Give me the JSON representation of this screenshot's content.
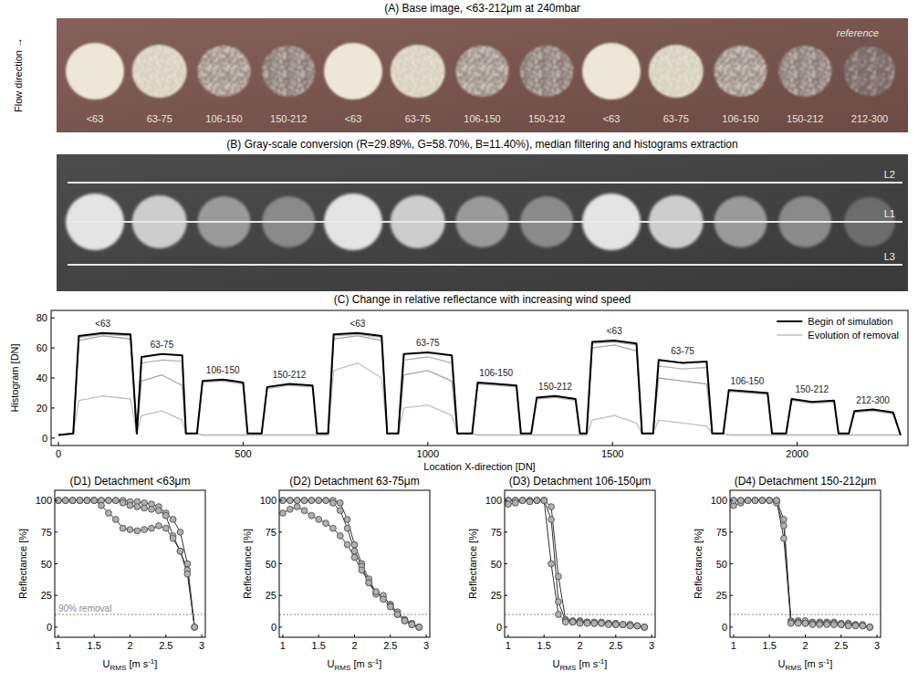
{
  "figure": {
    "panel_a": {
      "title": "(A) Base image, <63-212μm at 240mbar",
      "flow_label": "Flow direction →",
      "reference": "reference",
      "spots": [
        "<63",
        "63-75",
        "106-150",
        "150-212",
        "<63",
        "63-75",
        "106-150",
        "150-212",
        "<63",
        "63-75",
        "106-150",
        "150-212",
        "212-300"
      ]
    },
    "panel_b": {
      "title": "(B) Gray-scale conversion (R=29.89%, G=58.70%, B=11.40%), median filtering and histograms extraction",
      "lines": [
        "L2",
        "L1",
        "L3"
      ]
    }
  },
  "chart_data": [
    {
      "type": "line",
      "title": "(C) Change in relative reflectance with increasing wind speed",
      "xlabel": "Location X-direction [DN]",
      "ylabel": "Histogram [DN]",
      "x": [
        0,
        40,
        55,
        120,
        195,
        212,
        225,
        280,
        335,
        345,
        375,
        390,
        445,
        500,
        512,
        550,
        565,
        625,
        688,
        700,
        730,
        745,
        810,
        875,
        890,
        920,
        935,
        1000,
        1065,
        1080,
        1120,
        1135,
        1185,
        1240,
        1252,
        1280,
        1295,
        1345,
        1400,
        1412,
        1430,
        1445,
        1505,
        1565,
        1580,
        1610,
        1625,
        1690,
        1755,
        1770,
        1800,
        1815,
        1865,
        1920,
        1932,
        1970,
        1985,
        2040,
        2100,
        2112,
        2140,
        2155,
        2205,
        2260,
        2280
      ],
      "series": [
        {
          "name": "Evolution of removal",
          "color": "#b4b4b4",
          "values": [
            2,
            3,
            67,
            69,
            68,
            3,
            50,
            52,
            51,
            3,
            3,
            37,
            38,
            36,
            3,
            3,
            33,
            35,
            34,
            3,
            3,
            68,
            69,
            67,
            3,
            3,
            52,
            54,
            50,
            3,
            3,
            36,
            35,
            34,
            3,
            3,
            26,
            27,
            25,
            3,
            3,
            63,
            64,
            62,
            3,
            3,
            48,
            46,
            47,
            3,
            3,
            31,
            30,
            29,
            3,
            3,
            25,
            23,
            24,
            3,
            3,
            17,
            18,
            16,
            2
          ]
        },
        {
          "color": "#a6a6a6",
          "values": [
            2,
            3,
            65,
            68,
            66,
            3,
            38,
            42,
            35,
            3,
            3,
            2,
            2,
            2,
            2,
            2,
            2,
            2,
            2,
            2,
            2,
            66,
            68,
            65,
            3,
            3,
            42,
            45,
            38,
            3,
            3,
            2,
            2,
            2,
            2,
            2,
            2,
            2,
            2,
            2,
            2,
            60,
            62,
            58,
            3,
            3,
            40,
            38,
            36,
            3,
            3,
            2,
            2,
            2,
            2,
            2,
            2,
            2,
            2,
            2,
            2,
            2,
            2,
            2,
            2
          ]
        },
        {
          "color": "#c0c0c0",
          "values": [
            2,
            3,
            25,
            28,
            26,
            3,
            15,
            18,
            12,
            3,
            3,
            2,
            2,
            2,
            2,
            2,
            2,
            2,
            2,
            2,
            2,
            45,
            50,
            40,
            3,
            3,
            20,
            22,
            15,
            3,
            3,
            2,
            2,
            2,
            2,
            2,
            2,
            2,
            2,
            2,
            2,
            12,
            15,
            10,
            3,
            3,
            12,
            10,
            8,
            3,
            3,
            2,
            2,
            2,
            2,
            2,
            2,
            2,
            2,
            2,
            2,
            2,
            2,
            2,
            2
          ]
        },
        {
          "name": "Begin of simulation",
          "color": "#000000",
          "values": [
            2,
            3,
            68,
            70,
            69,
            3,
            54,
            56,
            55,
            3,
            3,
            38,
            39,
            37,
            3,
            3,
            34,
            36,
            35,
            3,
            3,
            69,
            70,
            68,
            3,
            3,
            56,
            57,
            55,
            3,
            3,
            37,
            36,
            35,
            3,
            3,
            27,
            28,
            26,
            3,
            3,
            64,
            65,
            63,
            3,
            3,
            52,
            50,
            51,
            3,
            3,
            32,
            31,
            30,
            3,
            3,
            26,
            24,
            25,
            3,
            3,
            18,
            19,
            17,
            2
          ]
        }
      ],
      "xlim": [
        -20,
        2300
      ],
      "ylim": [
        -5,
        85
      ],
      "xticks": [
        0,
        500,
        1000,
        1500,
        2000
      ],
      "yticks": [
        0,
        20,
        40,
        60,
        80
      ],
      "legend": "top-right",
      "annotations": [
        {
          "text": "<63",
          "x": 120,
          "y": 74
        },
        {
          "text": "63-75",
          "x": 280,
          "y": 60
        },
        {
          "text": "106-150",
          "x": 445,
          "y": 43
        },
        {
          "text": "150-212",
          "x": 625,
          "y": 40
        },
        {
          "text": "<63",
          "x": 810,
          "y": 74
        },
        {
          "text": "63-75",
          "x": 1000,
          "y": 61
        },
        {
          "text": "106-150",
          "x": 1185,
          "y": 41
        },
        {
          "text": "150-212",
          "x": 1345,
          "y": 32
        },
        {
          "text": "<63",
          "x": 1505,
          "y": 69
        },
        {
          "text": "63-75",
          "x": 1690,
          "y": 56
        },
        {
          "text": "106-150",
          "x": 1865,
          "y": 36
        },
        {
          "text": "150-212",
          "x": 2040,
          "y": 30
        },
        {
          "text": "212-300",
          "x": 2205,
          "y": 23
        }
      ]
    },
    {
      "type": "line",
      "title": "(D1) Detachment <63μm",
      "xlabel": [
        "U",
        "RMS",
        " [m s",
        "-1",
        "]"
      ],
      "ylabel": "Reflectance [%]",
      "x": [
        1,
        1.1,
        1.2,
        1.3,
        1.4,
        1.5,
        1.6,
        1.7,
        1.8,
        1.9,
        2,
        2.1,
        2.2,
        2.3,
        2.4,
        2.5,
        2.6,
        2.7,
        2.8,
        2.9
      ],
      "series": [
        {
          "values": [
            100,
            100,
            100,
            100,
            100,
            100,
            100,
            100,
            100,
            100,
            99,
            99,
            98,
            97,
            95,
            90,
            85,
            75,
            50,
            0
          ]
        },
        {
          "values": [
            100,
            100,
            100,
            100,
            100,
            100,
            100,
            100,
            100,
            98,
            96,
            95,
            94,
            93,
            92,
            88,
            72,
            60,
            45,
            0
          ]
        },
        {
          "values": [
            100,
            100,
            100,
            100,
            100,
            100,
            96,
            90,
            85,
            78,
            77,
            76,
            77,
            78,
            80,
            78,
            70,
            60,
            42,
            0
          ]
        }
      ],
      "color": "#b0b0b0",
      "marker": "circle",
      "xlim": [
        0.95,
        3.05
      ],
      "ylim": [
        -8,
        108
      ],
      "xticks": [
        1,
        1.5,
        2,
        2.5,
        3
      ],
      "yticks": [
        0,
        25,
        50,
        75,
        100
      ],
      "threshold": 10,
      "threshold_label": "90% removal"
    },
    {
      "type": "line",
      "title": "(D2) Detachment 63-75μm",
      "xlabel": [
        "U",
        "RMS",
        " [m s",
        "-1",
        "]"
      ],
      "ylabel": "Reflectance [%]",
      "x": [
        1,
        1.1,
        1.2,
        1.3,
        1.4,
        1.5,
        1.6,
        1.7,
        1.8,
        1.9,
        2,
        2.1,
        2.2,
        2.3,
        2.4,
        2.5,
        2.6,
        2.7,
        2.8,
        2.9
      ],
      "series": [
        {
          "values": [
            100,
            100,
            100,
            100,
            100,
            100,
            100,
            100,
            98,
            85,
            65,
            50,
            38,
            27,
            24,
            18,
            12,
            6,
            3,
            0
          ]
        },
        {
          "values": [
            100,
            100,
            100,
            100,
            100,
            100,
            100,
            98,
            92,
            78,
            60,
            48,
            35,
            26,
            25,
            17,
            10,
            5,
            2,
            0
          ]
        },
        {
          "values": [
            90,
            93,
            95,
            92,
            88,
            85,
            82,
            78,
            72,
            65,
            55,
            45,
            35,
            28,
            22,
            16,
            10,
            5,
            2,
            0
          ]
        }
      ],
      "color": "#b0b0b0",
      "marker": "circle",
      "xlim": [
        0.95,
        3.05
      ],
      "ylim": [
        -8,
        108
      ],
      "xticks": [
        1,
        1.5,
        2,
        2.5,
        3
      ],
      "yticks": [
        0,
        25,
        50,
        75,
        100
      ],
      "threshold": 10
    },
    {
      "type": "line",
      "title": "(D3) Detachment 106-150μm",
      "xlabel": [
        "U",
        "RMS",
        " [m s",
        "-1",
        "]"
      ],
      "ylabel": "Reflectance [%]",
      "x": [
        1,
        1.1,
        1.2,
        1.3,
        1.4,
        1.5,
        1.6,
        1.7,
        1.8,
        1.9,
        2,
        2.1,
        2.2,
        2.3,
        2.4,
        2.5,
        2.6,
        2.7,
        2.8,
        2.9
      ],
      "series": [
        {
          "values": [
            100,
            100,
            100,
            100,
            100,
            100,
            95,
            40,
            6,
            5,
            5,
            4,
            4,
            4,
            3,
            3,
            2,
            2,
            1,
            0
          ]
        },
        {
          "values": [
            100,
            100,
            100,
            100,
            100,
            100,
            85,
            20,
            5,
            4,
            4,
            4,
            3,
            3,
            3,
            2,
            2,
            2,
            1,
            0
          ]
        },
        {
          "values": [
            97,
            98,
            100,
            99,
            100,
            100,
            50,
            10,
            4,
            4,
            3,
            3,
            3,
            3,
            2,
            2,
            2,
            1,
            1,
            0
          ]
        }
      ],
      "color": "#b0b0b0",
      "marker": "circle",
      "xlim": [
        0.95,
        3.05
      ],
      "ylim": [
        -8,
        108
      ],
      "xticks": [
        1,
        1.5,
        2,
        2.5,
        3
      ],
      "yticks": [
        0,
        25,
        50,
        75,
        100
      ],
      "threshold": 10
    },
    {
      "type": "line",
      "title": "(D4) Detachment 150-212μm",
      "xlabel": [
        "U",
        "RMS",
        " [m s",
        "-1",
        "]"
      ],
      "ylabel": "Reflectance [%]",
      "x": [
        1,
        1.1,
        1.2,
        1.3,
        1.4,
        1.5,
        1.6,
        1.7,
        1.8,
        1.9,
        2,
        2.1,
        2.2,
        2.3,
        2.4,
        2.5,
        2.6,
        2.7,
        2.8,
        2.9
      ],
      "series": [
        {
          "values": [
            100,
            100,
            100,
            100,
            100,
            100,
            100,
            85,
            5,
            5,
            5,
            4,
            4,
            4,
            4,
            3,
            3,
            2,
            2,
            0
          ]
        },
        {
          "values": [
            96,
            98,
            100,
            100,
            100,
            100,
            98,
            80,
            4,
            4,
            3,
            3,
            3,
            3,
            3,
            2,
            2,
            2,
            1,
            0
          ]
        },
        {
          "values": [
            100,
            100,
            100,
            100,
            100,
            100,
            100,
            70,
            3,
            3,
            3,
            2,
            2,
            2,
            2,
            2,
            1,
            1,
            1,
            0
          ]
        }
      ],
      "color": "#b0b0b0",
      "marker": "circle",
      "xlim": [
        0.95,
        3.05
      ],
      "ylim": [
        -8,
        108
      ],
      "xticks": [
        1,
        1.5,
        2,
        2.5,
        3
      ],
      "yticks": [
        0,
        25,
        50,
        75,
        100
      ],
      "threshold": 10
    }
  ]
}
